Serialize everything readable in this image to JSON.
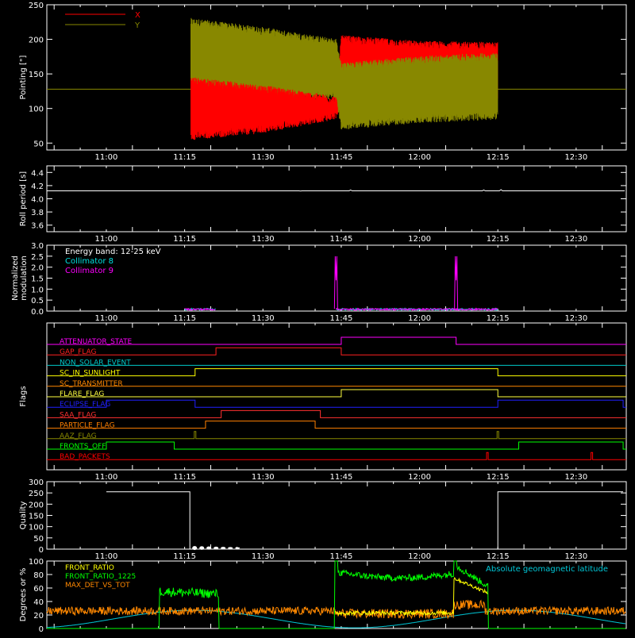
{
  "colors": {
    "background": "#000000",
    "axes": "#ffffff",
    "x": "#ff0000",
    "y": "#888800",
    "collimator8": "#00e0e0",
    "collimator9": "#ff00ff",
    "front_ratio": "#ffff00",
    "front_ratio_1225": "#00ff00",
    "max_det": "#ff8800",
    "geomag": "#00c8d8"
  },
  "time_ticks": [
    "11:00",
    "11:15",
    "11:30",
    "11:45",
    "12:00",
    "12:15",
    "12:30"
  ],
  "chart_data": [
    {
      "type": "area",
      "ylabel": "Pointing [\"]",
      "ylim": [
        40,
        250
      ],
      "yticks": [
        "50",
        "100",
        "150",
        "200",
        "250"
      ],
      "series": [
        {
          "name": "X",
          "color": "#ff0000",
          "x": [
            "11:16",
            "11:30",
            "11:44",
            "11:45",
            "12:00",
            "12:15"
          ],
          "low": [
            60,
            70,
            90,
            110,
            112,
            112
          ],
          "high": [
            140,
            128,
            112,
            200,
            192,
            190
          ]
        },
        {
          "name": "Y",
          "color": "#888800",
          "x": [
            "11:16",
            "11:30",
            "11:44",
            "11:45",
            "12:00",
            "12:15"
          ],
          "low": [
            110,
            115,
            120,
            75,
            85,
            90
          ],
          "high": [
            225,
            212,
            195,
            160,
            170,
            175
          ]
        }
      ],
      "baseline": 128
    },
    {
      "type": "line",
      "ylabel": "Roll period [s]",
      "ylim": [
        3.5,
        4.5
      ],
      "yticks": [
        "3.6",
        "3.8",
        "4.0",
        "4.2",
        "4.4"
      ],
      "value": 4.12
    },
    {
      "type": "line",
      "ylabel": "Normalized modulation",
      "ylim": [
        0,
        3.0
      ],
      "yticks": [
        "0.0",
        "0.5",
        "1.0",
        "1.5",
        "2.0",
        "2.5",
        "3.0"
      ],
      "annotation": "Energy band: 12-25 keV",
      "series": [
        {
          "name": "Collimator 8",
          "color": "#00e0e0"
        },
        {
          "name": "Collimator 9",
          "color": "#ff00ff"
        }
      ],
      "data_range": [
        "11:15",
        "11:21",
        "11:44",
        "12:15"
      ],
      "spikes": [
        {
          "x": "11:44",
          "y": 2.5
        },
        {
          "x": "12:07",
          "y": 2.5
        }
      ]
    },
    {
      "type": "line",
      "ylabel": "Flags",
      "flags": [
        {
          "label": "ATTENUATOR_STATE",
          "color": "#ff00ff",
          "on": [
            [
              "11:45",
              "12:07"
            ]
          ]
        },
        {
          "label": "GAP_FLAG",
          "color": "#ff2020",
          "on": [
            [
              "11:21",
              "11:45"
            ]
          ]
        },
        {
          "label": "NON_SOLAR_EVENT",
          "color": "#00c8c8",
          "on": []
        },
        {
          "label": "SC_IN_SUNLIGHT",
          "color": "#ffff00",
          "on": [
            [
              "11:17",
              "12:15"
            ]
          ]
        },
        {
          "label": "SC_TRANSMITTER",
          "color": "#ff8800",
          "on": []
        },
        {
          "label": "FLARE_FLAG",
          "color": "#ffff40",
          "on": [
            [
              "11:45",
              "12:15"
            ]
          ]
        },
        {
          "label": "ECLIPSE_FLAG",
          "color": "#2020ff",
          "on": [
            [
              "11:00",
              "11:17"
            ],
            [
              "12:15",
              "12:39"
            ]
          ]
        },
        {
          "label": "SAA_FLAG",
          "color": "#ff3030",
          "on": [
            [
              "11:22",
              "11:41"
            ]
          ]
        },
        {
          "label": "PARTICLE_FLAG",
          "color": "#ff8000",
          "on": [
            [
              "11:19",
              "11:40"
            ]
          ]
        },
        {
          "label": "AAZ_FLAG",
          "color": "#888800",
          "on": [
            [
              "11:17",
              "11:17"
            ],
            [
              "12:15",
              "12:15"
            ]
          ]
        },
        {
          "label": "FRONTS_OFF",
          "color": "#00ff00",
          "on": [
            [
              "11:00",
              "11:13"
            ],
            [
              "12:19",
              "12:39"
            ]
          ]
        },
        {
          "label": "BAD_PACKETS",
          "color": "#ff0000",
          "on": [
            [
              "12:13",
              "12:13"
            ],
            [
              "12:33",
              "12:33"
            ]
          ]
        }
      ]
    },
    {
      "type": "line",
      "ylabel": "Quality",
      "ylim": [
        0,
        300
      ],
      "yticks": [
        "0",
        "50",
        "100",
        "150",
        "200",
        "250",
        "300"
      ],
      "high_value": 255,
      "high_ranges": [
        [
          "11:00",
          "11:16"
        ],
        [
          "12:15",
          "12:39"
        ]
      ]
    },
    {
      "type": "line",
      "ylabel": "Degrees or %",
      "ylim": [
        0,
        100
      ],
      "yticks": [
        "0",
        "20",
        "40",
        "60",
        "80",
        "100"
      ],
      "legend_right": "Absolute geomagnetic latitude",
      "series": [
        {
          "name": "FRONT_RATIO",
          "color": "#ffff00"
        },
        {
          "name": "FRONT_RATIO_1225",
          "color": "#00ff00"
        },
        {
          "name": "MAX_DET_VS_TOT",
          "color": "#ff8800"
        }
      ]
    }
  ]
}
